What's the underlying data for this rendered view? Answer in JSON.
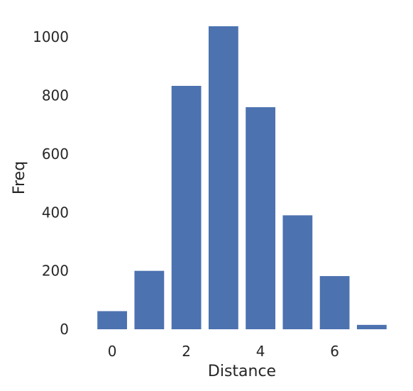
{
  "chart_data": {
    "type": "bar",
    "title": "",
    "xlabel": "Distance",
    "ylabel": "Freq",
    "x": [
      0,
      1,
      2,
      3,
      4,
      5,
      6,
      7
    ],
    "values": [
      62,
      200,
      833,
      1037,
      760,
      390,
      182,
      15
    ],
    "bar_color": "#4c72b0",
    "xticks": [
      0,
      2,
      4,
      6
    ],
    "yticks": [
      0,
      200,
      400,
      600,
      800,
      1000
    ],
    "xlim": [
      -0.5,
      7.5
    ],
    "ylim": [
      0,
      1037
    ],
    "grid": false
  }
}
